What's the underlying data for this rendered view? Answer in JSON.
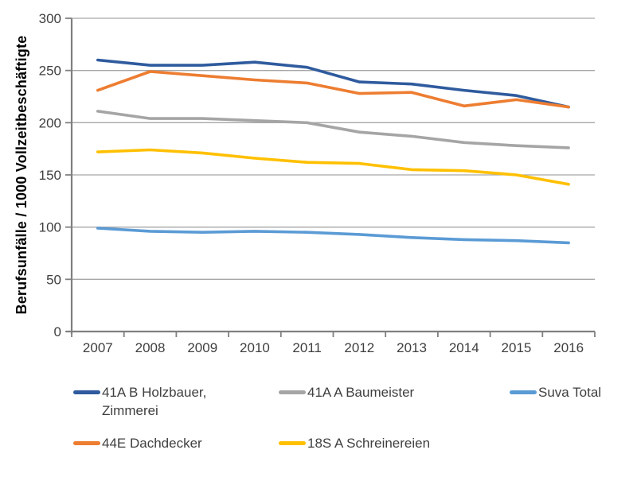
{
  "chart_data": {
    "type": "line",
    "title": "",
    "xlabel": "",
    "ylabel": "Berufsunfälle / 1000 Vollzeitbeschäftigte",
    "ylim": [
      0,
      300
    ],
    "ytick_step": 50,
    "grid": true,
    "legend_position": "bottom",
    "categories": [
      "2007",
      "2008",
      "2009",
      "2010",
      "2011",
      "2012",
      "2013",
      "2014",
      "2015",
      "2016"
    ],
    "series": [
      {
        "name": "41A B Holzbauer, Zimmerei",
        "color": "#2F5B9E",
        "values": [
          260,
          255,
          255,
          258,
          253,
          239,
          237,
          231,
          226,
          215
        ]
      },
      {
        "name": "41A A Baumeister",
        "color": "#A5A5A5",
        "values": [
          211,
          204,
          204,
          202,
          200,
          191,
          187,
          181,
          178,
          176
        ]
      },
      {
        "name": "Suva Total",
        "color": "#5B9BD5",
        "values": [
          99,
          96,
          95,
          96,
          95,
          93,
          90,
          88,
          87,
          85
        ]
      },
      {
        "name": "44E Dachdecker",
        "color": "#ED7D31",
        "values": [
          231,
          249,
          245,
          241,
          238,
          228,
          229,
          216,
          222,
          215
        ]
      },
      {
        "name": "18S A Schreinereien",
        "color": "#FFC000",
        "values": [
          172,
          174,
          171,
          166,
          162,
          161,
          155,
          154,
          150,
          141
        ]
      }
    ]
  },
  "style_colors": {
    "grid": "#A6A6A6",
    "axis": "#808080",
    "tick_text": "#3F3F3F"
  }
}
